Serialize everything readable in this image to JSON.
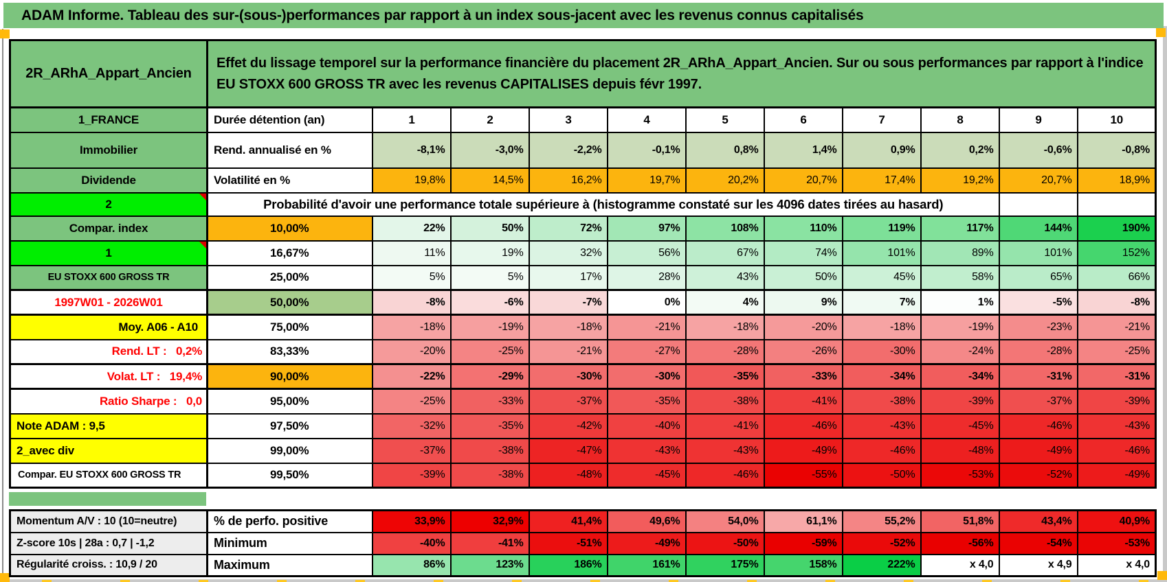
{
  "page_title": "ADAM Informe. Tableau des sur-(sous-)performances par rapport à un index sous-jacent avec les revenus connus capitalisés",
  "header": {
    "product": "2R_ARhA_Appart_Ancien",
    "description": "Effet du lissage temporel sur la performance financière du placement 2R_ARhA_Appart_Ancien. Sur ou sous performances par rapport à l'indice EU STOXX 600 GROSS TR avec les revenus CAPITALISES depuis févr 1997."
  },
  "palette": {
    "title_green": "#7cc47e",
    "bright_green": "#00ee00",
    "orange": "#fcb40e",
    "yellow": "#ffff00",
    "sage_green": "#a7cd8c",
    "rend_bg": "#cbdcb9",
    "summary_label_gray": "#ededed",
    "red_text": "#ff0000",
    "comment_marker_red": "#dd0000",
    "page_break_orange": "#ffb90b"
  },
  "columns": [
    "1",
    "2",
    "3",
    "4",
    "5",
    "6",
    "7",
    "8",
    "9",
    "10"
  ],
  "table": {
    "rows": [
      {
        "type": "cols",
        "left": {
          "text": "1_FRANCE",
          "style": "green"
        },
        "head": {
          "text": "Durée détention (an)",
          "style": ""
        },
        "bold": true
      },
      {
        "type": "data",
        "cls": "tall",
        "left": {
          "text": "Immobilier",
          "style": "green"
        },
        "head": {
          "text": "Rend. annualisé en %",
          "style": ""
        },
        "bold": true,
        "values": [
          "-8,1%",
          "-3,0%",
          "-2,2%",
          "-0,1%",
          "0,8%",
          "1,4%",
          "0,9%",
          "0,2%",
          "-0,6%",
          "-0,8%"
        ],
        "colors": [
          "#cbdcb9",
          "#cbdcb9",
          "#cbdcb9",
          "#cbdcb9",
          "#cbdcb9",
          "#cbdcb9",
          "#cbdcb9",
          "#cbdcb9",
          "#cbdcb9",
          "#cbdcb9"
        ]
      },
      {
        "type": "data",
        "left": {
          "text": "Dividende",
          "style": "green"
        },
        "head": {
          "text": "Volatilité en %",
          "style": ""
        },
        "bold": false,
        "values": [
          "19,8%",
          "14,5%",
          "16,2%",
          "19,7%",
          "20,2%",
          "20,7%",
          "17,4%",
          "19,2%",
          "20,7%",
          "18,9%"
        ],
        "colors": [
          "#fcb40e",
          "#fcb40e",
          "#fcb40e",
          "#fcb40e",
          "#fcb40e",
          "#fcb40e",
          "#fcb40e",
          "#fcb40e",
          "#fcb40e",
          "#fcb40e"
        ]
      },
      {
        "type": "banner",
        "cls": "bannerrow",
        "left": {
          "text": "2",
          "style": "bright",
          "triangle": true
        },
        "text": "Probabilité d'avoir une performance totale supérieure à (histogramme constaté sur les 4096 dates tirées au hasard)",
        "empty_cols": 2
      },
      {
        "type": "data",
        "left": {
          "text": "Compar. index",
          "style": "green"
        },
        "head": {
          "text": "10,00%",
          "style": "orange"
        },
        "bold": true,
        "values": [
          "22%",
          "50%",
          "72%",
          "97%",
          "108%",
          "110%",
          "119%",
          "117%",
          "144%",
          "190%"
        ],
        "colors": [
          "#e3f6e9",
          "#d4f2dc",
          "#beedcb",
          "#a2e7b5",
          "#8de3a4",
          "#8ae3a2",
          "#7de098",
          "#81e19a",
          "#4fd876",
          "#1bd04e"
        ]
      },
      {
        "type": "data",
        "left": {
          "text": "1",
          "style": "bright",
          "triangle": true
        },
        "head": {
          "text": "16,67%",
          "style": "center"
        },
        "bold": false,
        "values": [
          "11%",
          "19%",
          "32%",
          "56%",
          "67%",
          "74%",
          "101%",
          "89%",
          "101%",
          "152%"
        ],
        "colors": [
          "#eef9f1",
          "#e7f8ec",
          "#dbf4e3",
          "#c7efd3",
          "#bbecca",
          "#b3ebc4",
          "#95e4ac",
          "#a1e6b5",
          "#95e4ac",
          "#45d66e"
        ]
      },
      {
        "type": "data",
        "left": {
          "text": "EU STOXX 600 GROSS TR",
          "style": "green small"
        },
        "head": {
          "text": "25,00%",
          "style": "center"
        },
        "bold": false,
        "values": [
          "5%",
          "5%",
          "17%",
          "28%",
          "43%",
          "50%",
          "45%",
          "58%",
          "65%",
          "66%"
        ],
        "colors": [
          "#f3fbf5",
          "#f3fbf5",
          "#e8f8ed",
          "#def5e6",
          "#cef1d9",
          "#c9f0d5",
          "#ccf1d7",
          "#c1eece",
          "#baecc9",
          "#b9ecc8"
        ]
      },
      {
        "type": "data",
        "frame": true,
        "left": {
          "text": "1997W01 - 2026W01",
          "style": "red-center"
        },
        "head": {
          "text": "50,00%",
          "style": "sage"
        },
        "bold": true,
        "values": [
          "-8%",
          "-6%",
          "-7%",
          "0%",
          "4%",
          "9%",
          "7%",
          "1%",
          "-5%",
          "-8%"
        ],
        "colors": [
          "#f9d4d4",
          "#fadcdc",
          "#f9d8d8",
          "#ffffff",
          "#f3fbf5",
          "#edf9f0",
          "#f0faf3",
          "#fcfefd",
          "#fae0e0",
          "#f9d4d4"
        ]
      },
      {
        "type": "data",
        "left": {
          "text": "Moy. A06 - A10",
          "style": "yellow-right"
        },
        "head": {
          "text": "75,00%",
          "style": "center"
        },
        "bold": false,
        "values": [
          "-18%",
          "-19%",
          "-18%",
          "-21%",
          "-18%",
          "-20%",
          "-18%",
          "-19%",
          "-23%",
          "-21%"
        ],
        "colors": [
          "#f6a3a3",
          "#f69f9f",
          "#f6a3a3",
          "#f59595",
          "#f6a3a3",
          "#f59a9a",
          "#f6a3a3",
          "#f69f9f",
          "#f48c8c",
          "#f59595"
        ]
      },
      {
        "type": "data",
        "left": {
          "text": "Rend. LT :   0,2%",
          "style": "red-right"
        },
        "head": {
          "text": "83,33%",
          "style": "center"
        },
        "bold": false,
        "values": [
          "-20%",
          "-25%",
          "-21%",
          "-27%",
          "-28%",
          "-26%",
          "-30%",
          "-24%",
          "-28%",
          "-25%"
        ],
        "colors": [
          "#f59a9a",
          "#f48484",
          "#f59595",
          "#f37b7b",
          "#f37676",
          "#f38080",
          "#f26d6d",
          "#f48888",
          "#f37676",
          "#f48484"
        ]
      },
      {
        "type": "data",
        "frame": true,
        "left": {
          "text": "Volat. LT :   19,4%",
          "style": "red-right"
        },
        "head": {
          "text": "90,00%",
          "style": "orange"
        },
        "bold": true,
        "values": [
          "-22%",
          "-29%",
          "-30%",
          "-30%",
          "-35%",
          "-33%",
          "-34%",
          "-34%",
          "-31%",
          "-31%"
        ],
        "colors": [
          "#f49090",
          "#f37272",
          "#f26d6d",
          "#f26d6d",
          "#f15858",
          "#f16161",
          "#f15d5d",
          "#f15d5d",
          "#f26868",
          "#f26868"
        ]
      },
      {
        "type": "data",
        "left": {
          "text": "Ratio Sharpe :   0,0",
          "style": "red-right"
        },
        "head": {
          "text": "95,00%",
          "style": "center"
        },
        "bold": false,
        "values": [
          "-25%",
          "-33%",
          "-37%",
          "-35%",
          "-38%",
          "-41%",
          "-38%",
          "-39%",
          "-37%",
          "-39%"
        ],
        "colors": [
          "#f48484",
          "#f16161",
          "#f04f4f",
          "#f15858",
          "#f04a4a",
          "#f03e3e",
          "#f04a4a",
          "#f04545",
          "#f04f4f",
          "#f04545"
        ]
      },
      {
        "type": "data",
        "left": {
          "text": "Note ADAM : 9,5",
          "style": "yellow-left"
        },
        "head": {
          "text": "97,50%",
          "style": "center"
        },
        "bold": false,
        "values": [
          "-32%",
          "-35%",
          "-42%",
          "-40%",
          "-41%",
          "-46%",
          "-43%",
          "-45%",
          "-46%",
          "-43%"
        ],
        "colors": [
          "#f26565",
          "#f15858",
          "#ef3a3a",
          "#f04141",
          "#f03e3e",
          "#ee2828",
          "#ef3333",
          "#ee2c2c",
          "#ee2828",
          "#ef3333"
        ]
      },
      {
        "type": "data",
        "left": {
          "text": "2_avec div",
          "style": "yellow-left"
        },
        "head": {
          "text": "99,00%",
          "style": "center"
        },
        "bold": false,
        "values": [
          "-37%",
          "-38%",
          "-47%",
          "-43%",
          "-43%",
          "-49%",
          "-46%",
          "-48%",
          "-49%",
          "-46%"
        ],
        "colors": [
          "#f04f4f",
          "#f04a4a",
          "#ed2424",
          "#ef3333",
          "#ef3333",
          "#ed1b1b",
          "#ee2828",
          "#ed2020",
          "#ed1b1b",
          "#ee2828"
        ]
      },
      {
        "type": "data",
        "left": {
          "text": "Compar. EU STOXX 600 GROSS TR",
          "style": "white-left small"
        },
        "head": {
          "text": "99,50%",
          "style": "center"
        },
        "bold": false,
        "values": [
          "-39%",
          "-38%",
          "-48%",
          "-45%",
          "-46%",
          "-55%",
          "-50%",
          "-53%",
          "-52%",
          "-49%"
        ],
        "colors": [
          "#f04545",
          "#f04a4a",
          "#ed2020",
          "#ee2c2c",
          "#ee2828",
          "#ea0202",
          "#ec1212",
          "#eb0808",
          "#eb0c0c",
          "#ed1b1b"
        ]
      }
    ]
  },
  "summary": {
    "rows": [
      {
        "left": "Momentum A/V : 10 (10=neutre)",
        "head": "% de perfo. positive",
        "values": [
          "33,9%",
          "32,9%",
          "41,4%",
          "49,6%",
          "54,0%",
          "61,1%",
          "55,2%",
          "51,8%",
          "43,4%",
          "40,9%"
        ],
        "colors": [
          "#ee0505",
          "#ed0000",
          "#ef2121",
          "#f25c5c",
          "#f48181",
          "#f7a8a8",
          "#f48585",
          "#f26464",
          "#ef2a2a",
          "#ee1111"
        ]
      },
      {
        "left": "Z-score 10s | 28a : 0,7 | -1,2",
        "head": "Minimum",
        "values": [
          "-40%",
          "-41%",
          "-51%",
          "-49%",
          "-50%",
          "-59%",
          "-52%",
          "-56%",
          "-54%",
          "-53%"
        ],
        "colors": [
          "#f04141",
          "#f03e3e",
          "#eb0e0e",
          "#ed1b1b",
          "#ec1414",
          "#e90000",
          "#ea0a0a",
          "#e90000",
          "#ea0202",
          "#ea0505"
        ]
      },
      {
        "left": "Régularité croiss. : 10,9 / 20",
        "head": "Maximum",
        "values": [
          "86%",
          "123%",
          "186%",
          "161%",
          "175%",
          "158%",
          "222%",
          "x 4,0",
          "x 4,9",
          "x 4,0"
        ],
        "colors": [
          "#97e5ae",
          "#6cdc8e",
          "#28d15b",
          "#40d46a",
          "#30d25f",
          "#45d56d",
          "#0ace46",
          "#ffffff",
          "#ffffff",
          "#ffffff"
        ]
      }
    ]
  }
}
